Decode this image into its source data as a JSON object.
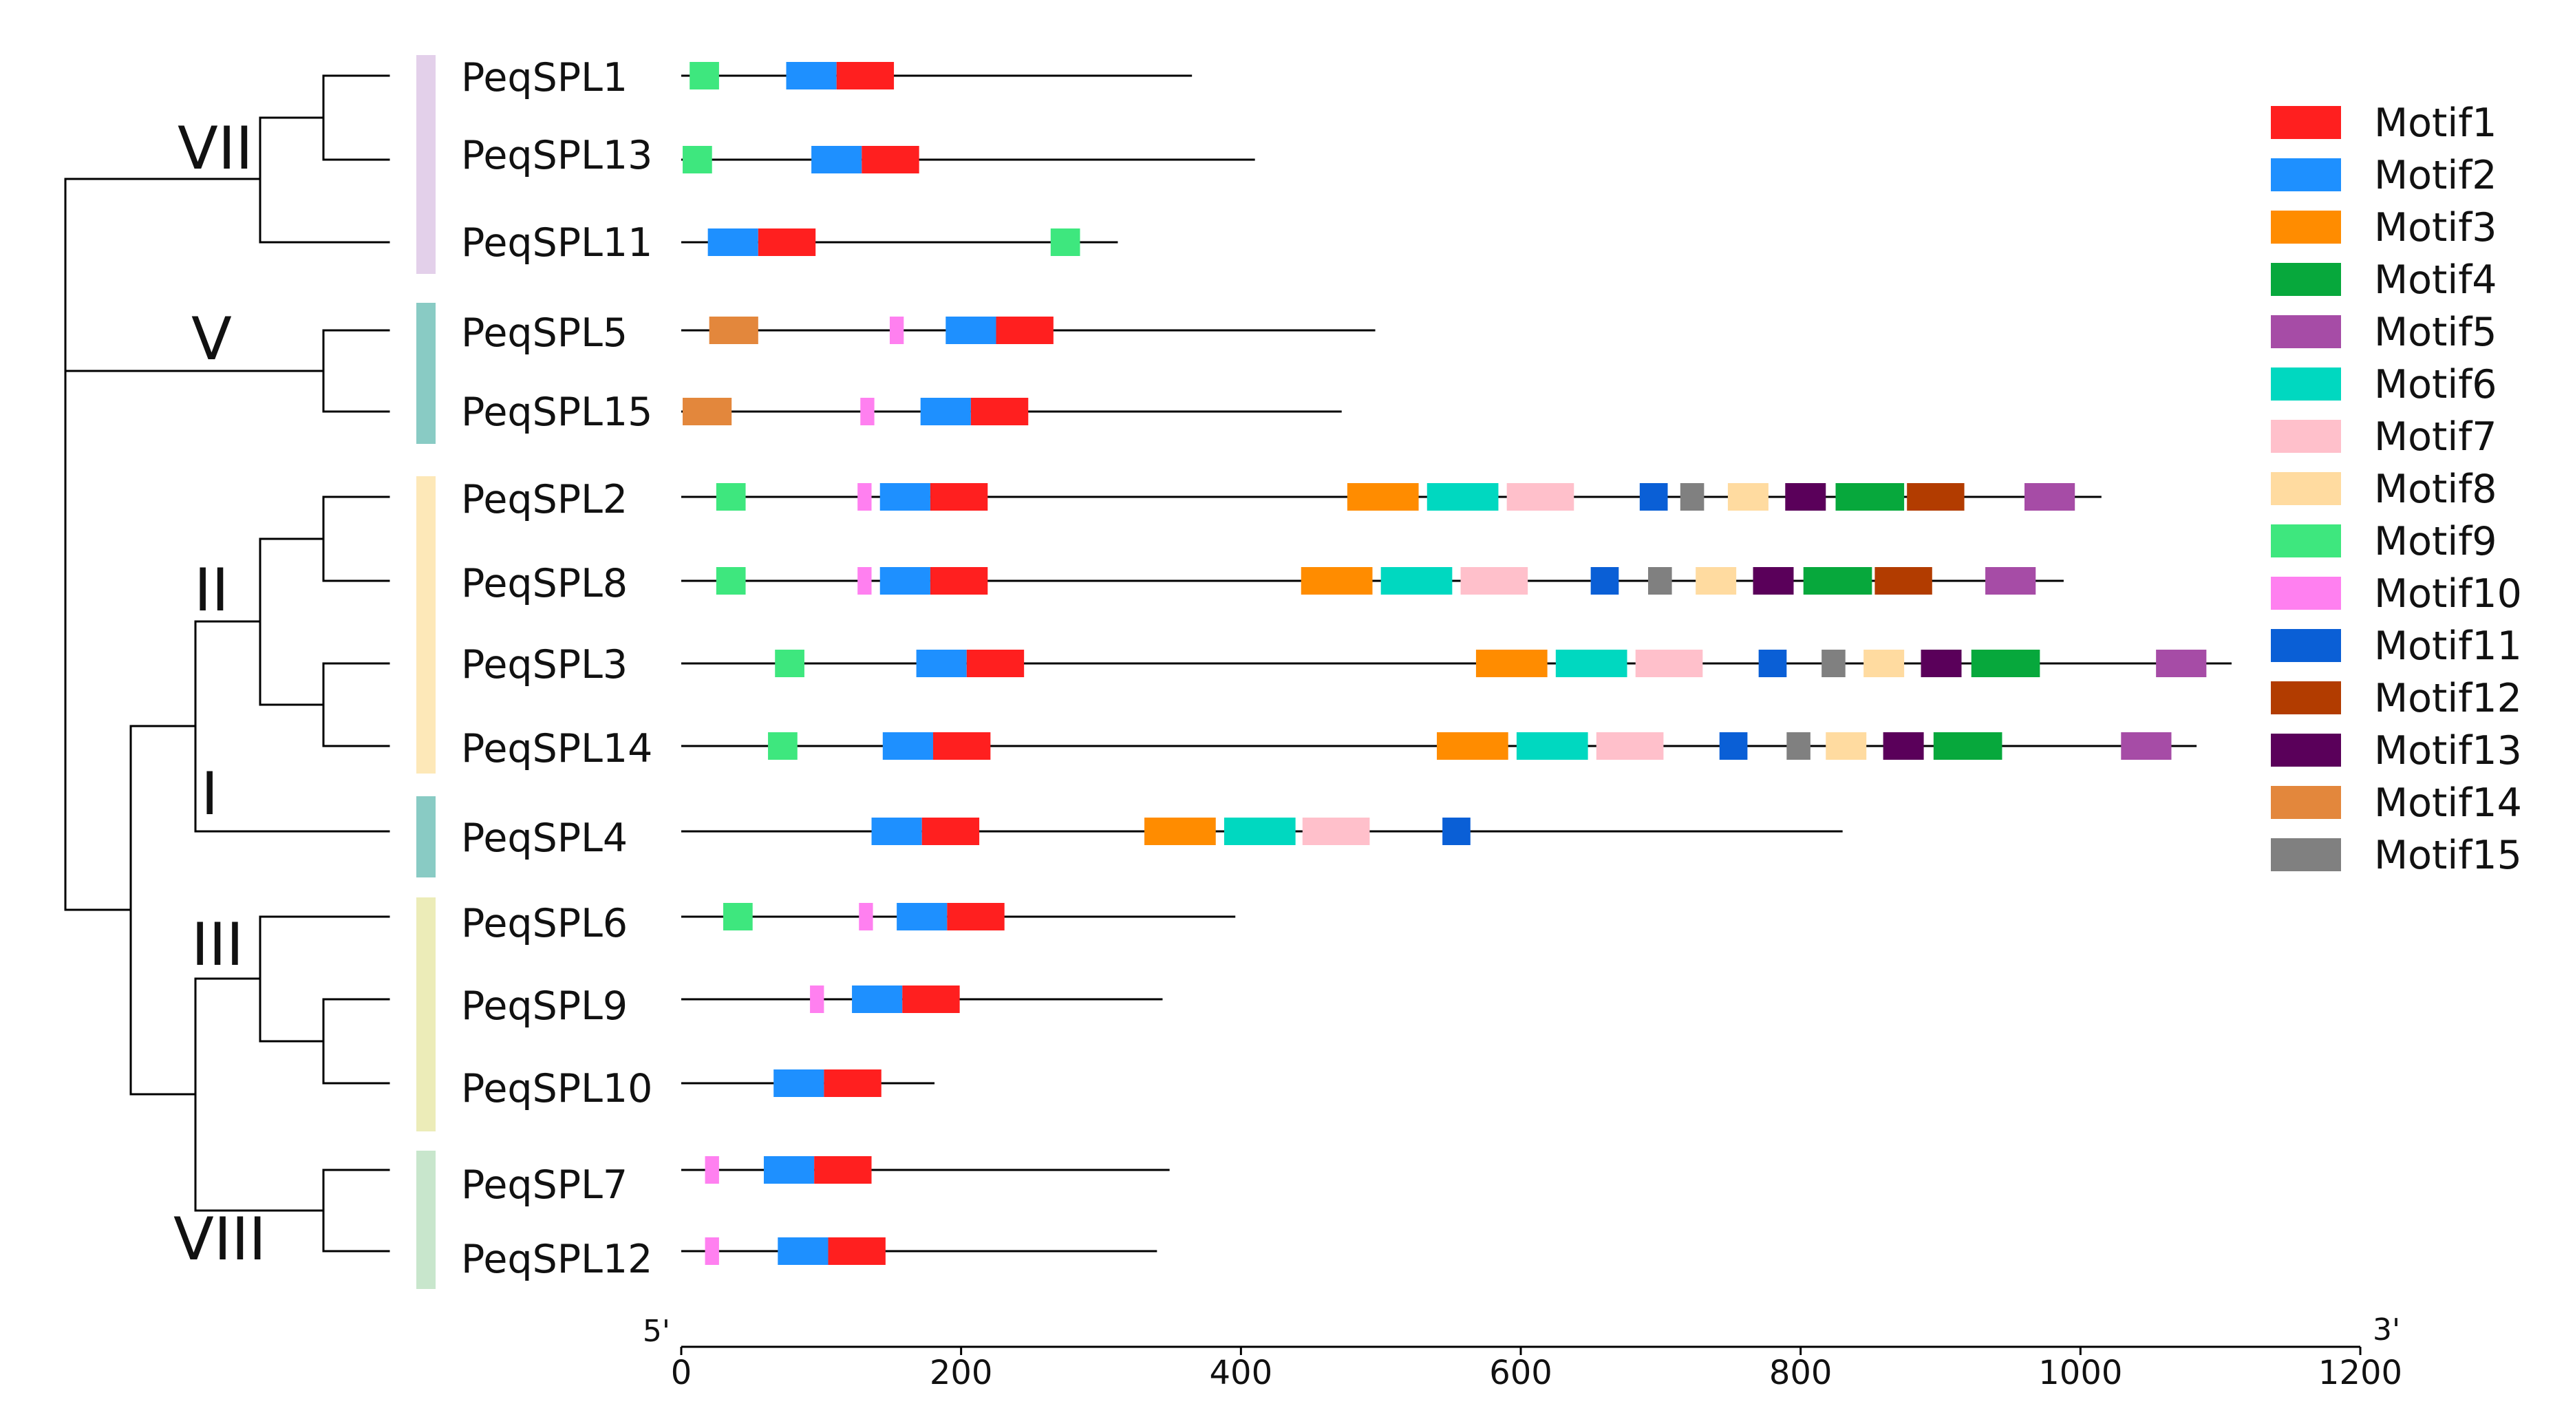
{
  "axis": {
    "min": 0,
    "max": 1200,
    "ticks": [
      0,
      200,
      400,
      600,
      800,
      1000,
      1200
    ],
    "five_prime": "5'",
    "three_prime": "3'"
  },
  "motifs": [
    {
      "name": "Motif1",
      "color": "#ff1f1f"
    },
    {
      "name": "Motif2",
      "color": "#1e90ff"
    },
    {
      "name": "Motif3",
      "color": "#ff8c00"
    },
    {
      "name": "Motif4",
      "color": "#07a83c"
    },
    {
      "name": "Motif5",
      "color": "#a64ca6"
    },
    {
      "name": "Motif6",
      "color": "#00d8c0"
    },
    {
      "name": "Motif7",
      "color": "#ffc0cb"
    },
    {
      "name": "Motif8",
      "color": "#ffdba0"
    },
    {
      "name": "Motif9",
      "color": "#3ee77e"
    },
    {
      "name": "Motif10",
      "color": "#ff80f0"
    },
    {
      "name": "Motif11",
      "color": "#0a5fd6"
    },
    {
      "name": "Motif12",
      "color": "#b23c00"
    },
    {
      "name": "Motif13",
      "color": "#5a005a"
    },
    {
      "name": "Motif14",
      "color": "#e3873c"
    },
    {
      "name": "Motif15",
      "color": "#808080"
    }
  ],
  "clades": [
    {
      "label": "VII",
      "color": "#e3d0ea"
    },
    {
      "label": "V",
      "color": "#89cbc4"
    },
    {
      "label": "II",
      "color": "#fde8b8"
    },
    {
      "label": "I",
      "color": "#89cbc4"
    },
    {
      "label": "III",
      "color": "#ececb8"
    },
    {
      "label": "VIII",
      "color": "#c8e6cc"
    }
  ],
  "genes": [
    {
      "name": "PeqSPL1",
      "length": 365,
      "motifs": [
        {
          "motif": "Motif9",
          "start": 6,
          "end": 27
        },
        {
          "motif": "Motif2",
          "start": 75,
          "end": 111
        },
        {
          "motif": "Motif1",
          "start": 111,
          "end": 152
        }
      ]
    },
    {
      "name": "PeqSPL13",
      "length": 410,
      "motifs": [
        {
          "motif": "Motif9",
          "start": 1,
          "end": 22
        },
        {
          "motif": "Motif2",
          "start": 93,
          "end": 129
        },
        {
          "motif": "Motif1",
          "start": 129,
          "end": 170
        }
      ]
    },
    {
      "name": "PeqSPL11",
      "length": 312,
      "motifs": [
        {
          "motif": "Motif2",
          "start": 19,
          "end": 55
        },
        {
          "motif": "Motif1",
          "start": 55,
          "end": 96
        },
        {
          "motif": "Motif9",
          "start": 264,
          "end": 285
        }
      ]
    },
    {
      "name": "PeqSPL5",
      "length": 496,
      "motifs": [
        {
          "motif": "Motif14",
          "start": 20,
          "end": 55
        },
        {
          "motif": "Motif10",
          "start": 149,
          "end": 159
        },
        {
          "motif": "Motif2",
          "start": 189,
          "end": 225
        },
        {
          "motif": "Motif1",
          "start": 225,
          "end": 266
        }
      ]
    },
    {
      "name": "PeqSPL15",
      "length": 472,
      "motifs": [
        {
          "motif": "Motif14",
          "start": 1,
          "end": 36
        },
        {
          "motif": "Motif10",
          "start": 128,
          "end": 138
        },
        {
          "motif": "Motif2",
          "start": 171,
          "end": 207
        },
        {
          "motif": "Motif1",
          "start": 207,
          "end": 248
        }
      ]
    },
    {
      "name": "PeqSPL2",
      "length": 1015,
      "motifs": [
        {
          "motif": "Motif9",
          "start": 25,
          "end": 46
        },
        {
          "motif": "Motif10",
          "start": 126,
          "end": 136
        },
        {
          "motif": "Motif2",
          "start": 142,
          "end": 178
        },
        {
          "motif": "Motif1",
          "start": 178,
          "end": 219
        },
        {
          "motif": "Motif3",
          "start": 476,
          "end": 527
        },
        {
          "motif": "Motif6",
          "start": 533,
          "end": 584
        },
        {
          "motif": "Motif7",
          "start": 590,
          "end": 638
        },
        {
          "motif": "Motif11",
          "start": 685,
          "end": 705
        },
        {
          "motif": "Motif15",
          "start": 714,
          "end": 731
        },
        {
          "motif": "Motif8",
          "start": 748,
          "end": 777
        },
        {
          "motif": "Motif13",
          "start": 789,
          "end": 818
        },
        {
          "motif": "Motif4",
          "start": 825,
          "end": 874
        },
        {
          "motif": "Motif12",
          "start": 876,
          "end": 917
        },
        {
          "motif": "Motif5",
          "start": 960,
          "end": 996
        }
      ]
    },
    {
      "name": "PeqSPL8",
      "length": 988,
      "motifs": [
        {
          "motif": "Motif9",
          "start": 25,
          "end": 46
        },
        {
          "motif": "Motif10",
          "start": 126,
          "end": 136
        },
        {
          "motif": "Motif2",
          "start": 142,
          "end": 178
        },
        {
          "motif": "Motif1",
          "start": 178,
          "end": 219
        },
        {
          "motif": "Motif3",
          "start": 443,
          "end": 494
        },
        {
          "motif": "Motif6",
          "start": 500,
          "end": 551
        },
        {
          "motif": "Motif7",
          "start": 557,
          "end": 605
        },
        {
          "motif": "Motif11",
          "start": 650,
          "end": 670
        },
        {
          "motif": "Motif15",
          "start": 691,
          "end": 708
        },
        {
          "motif": "Motif8",
          "start": 725,
          "end": 754
        },
        {
          "motif": "Motif13",
          "start": 766,
          "end": 795
        },
        {
          "motif": "Motif4",
          "start": 802,
          "end": 851
        },
        {
          "motif": "Motif12",
          "start": 853,
          "end": 894
        },
        {
          "motif": "Motif5",
          "start": 932,
          "end": 968
        }
      ]
    },
    {
      "name": "PeqSPL3",
      "length": 1108,
      "motifs": [
        {
          "motif": "Motif9",
          "start": 67,
          "end": 88
        },
        {
          "motif": "Motif2",
          "start": 168,
          "end": 204
        },
        {
          "motif": "Motif1",
          "start": 204,
          "end": 245
        },
        {
          "motif": "Motif3",
          "start": 568,
          "end": 619
        },
        {
          "motif": "Motif6",
          "start": 625,
          "end": 676
        },
        {
          "motif": "Motif7",
          "start": 682,
          "end": 730
        },
        {
          "motif": "Motif11",
          "start": 770,
          "end": 790
        },
        {
          "motif": "Motif15",
          "start": 815,
          "end": 832
        },
        {
          "motif": "Motif8",
          "start": 845,
          "end": 874
        },
        {
          "motif": "Motif13",
          "start": 886,
          "end": 915
        },
        {
          "motif": "Motif4",
          "start": 922,
          "end": 971
        },
        {
          "motif": "Motif5",
          "start": 1054,
          "end": 1090
        }
      ]
    },
    {
      "name": "PeqSPL14",
      "length": 1083,
      "motifs": [
        {
          "motif": "Motif9",
          "start": 62,
          "end": 83
        },
        {
          "motif": "Motif2",
          "start": 144,
          "end": 180
        },
        {
          "motif": "Motif1",
          "start": 180,
          "end": 221
        },
        {
          "motif": "Motif3",
          "start": 540,
          "end": 591
        },
        {
          "motif": "Motif6",
          "start": 597,
          "end": 648
        },
        {
          "motif": "Motif7",
          "start": 654,
          "end": 702
        },
        {
          "motif": "Motif11",
          "start": 742,
          "end": 762
        },
        {
          "motif": "Motif15",
          "start": 790,
          "end": 807
        },
        {
          "motif": "Motif8",
          "start": 818,
          "end": 847
        },
        {
          "motif": "Motif13",
          "start": 859,
          "end": 888
        },
        {
          "motif": "Motif4",
          "start": 895,
          "end": 944
        },
        {
          "motif": "Motif5",
          "start": 1029,
          "end": 1065
        }
      ]
    },
    {
      "name": "PeqSPL4",
      "length": 830,
      "motifs": [
        {
          "motif": "Motif2",
          "start": 136,
          "end": 172
        },
        {
          "motif": "Motif1",
          "start": 172,
          "end": 213
        },
        {
          "motif": "Motif3",
          "start": 331,
          "end": 382
        },
        {
          "motif": "Motif6",
          "start": 388,
          "end": 439
        },
        {
          "motif": "Motif7",
          "start": 444,
          "end": 492
        },
        {
          "motif": "Motif11",
          "start": 544,
          "end": 564
        }
      ]
    },
    {
      "name": "PeqSPL6",
      "length": 396,
      "motifs": [
        {
          "motif": "Motif9",
          "start": 30,
          "end": 51
        },
        {
          "motif": "Motif10",
          "start": 127,
          "end": 137
        },
        {
          "motif": "Motif2",
          "start": 154,
          "end": 190
        },
        {
          "motif": "Motif1",
          "start": 190,
          "end": 231
        }
      ]
    },
    {
      "name": "PeqSPL9",
      "length": 344,
      "motifs": [
        {
          "motif": "Motif10",
          "start": 92,
          "end": 102
        },
        {
          "motif": "Motif2",
          "start": 122,
          "end": 158
        },
        {
          "motif": "Motif1",
          "start": 158,
          "end": 199
        }
      ]
    },
    {
      "name": "PeqSPL10",
      "length": 181,
      "motifs": [
        {
          "motif": "Motif2",
          "start": 66,
          "end": 102
        },
        {
          "motif": "Motif1",
          "start": 102,
          "end": 143
        }
      ]
    },
    {
      "name": "PeqSPL7",
      "length": 349,
      "motifs": [
        {
          "motif": "Motif10",
          "start": 17,
          "end": 27
        },
        {
          "motif": "Motif2",
          "start": 59,
          "end": 95
        },
        {
          "motif": "Motif1",
          "start": 95,
          "end": 136
        }
      ]
    },
    {
      "name": "PeqSPL12",
      "length": 340,
      "motifs": [
        {
          "motif": "Motif10",
          "start": 17,
          "end": 27
        },
        {
          "motif": "Motif2",
          "start": 69,
          "end": 105
        },
        {
          "motif": "Motif1",
          "start": 105,
          "end": 146
        }
      ]
    }
  ]
}
